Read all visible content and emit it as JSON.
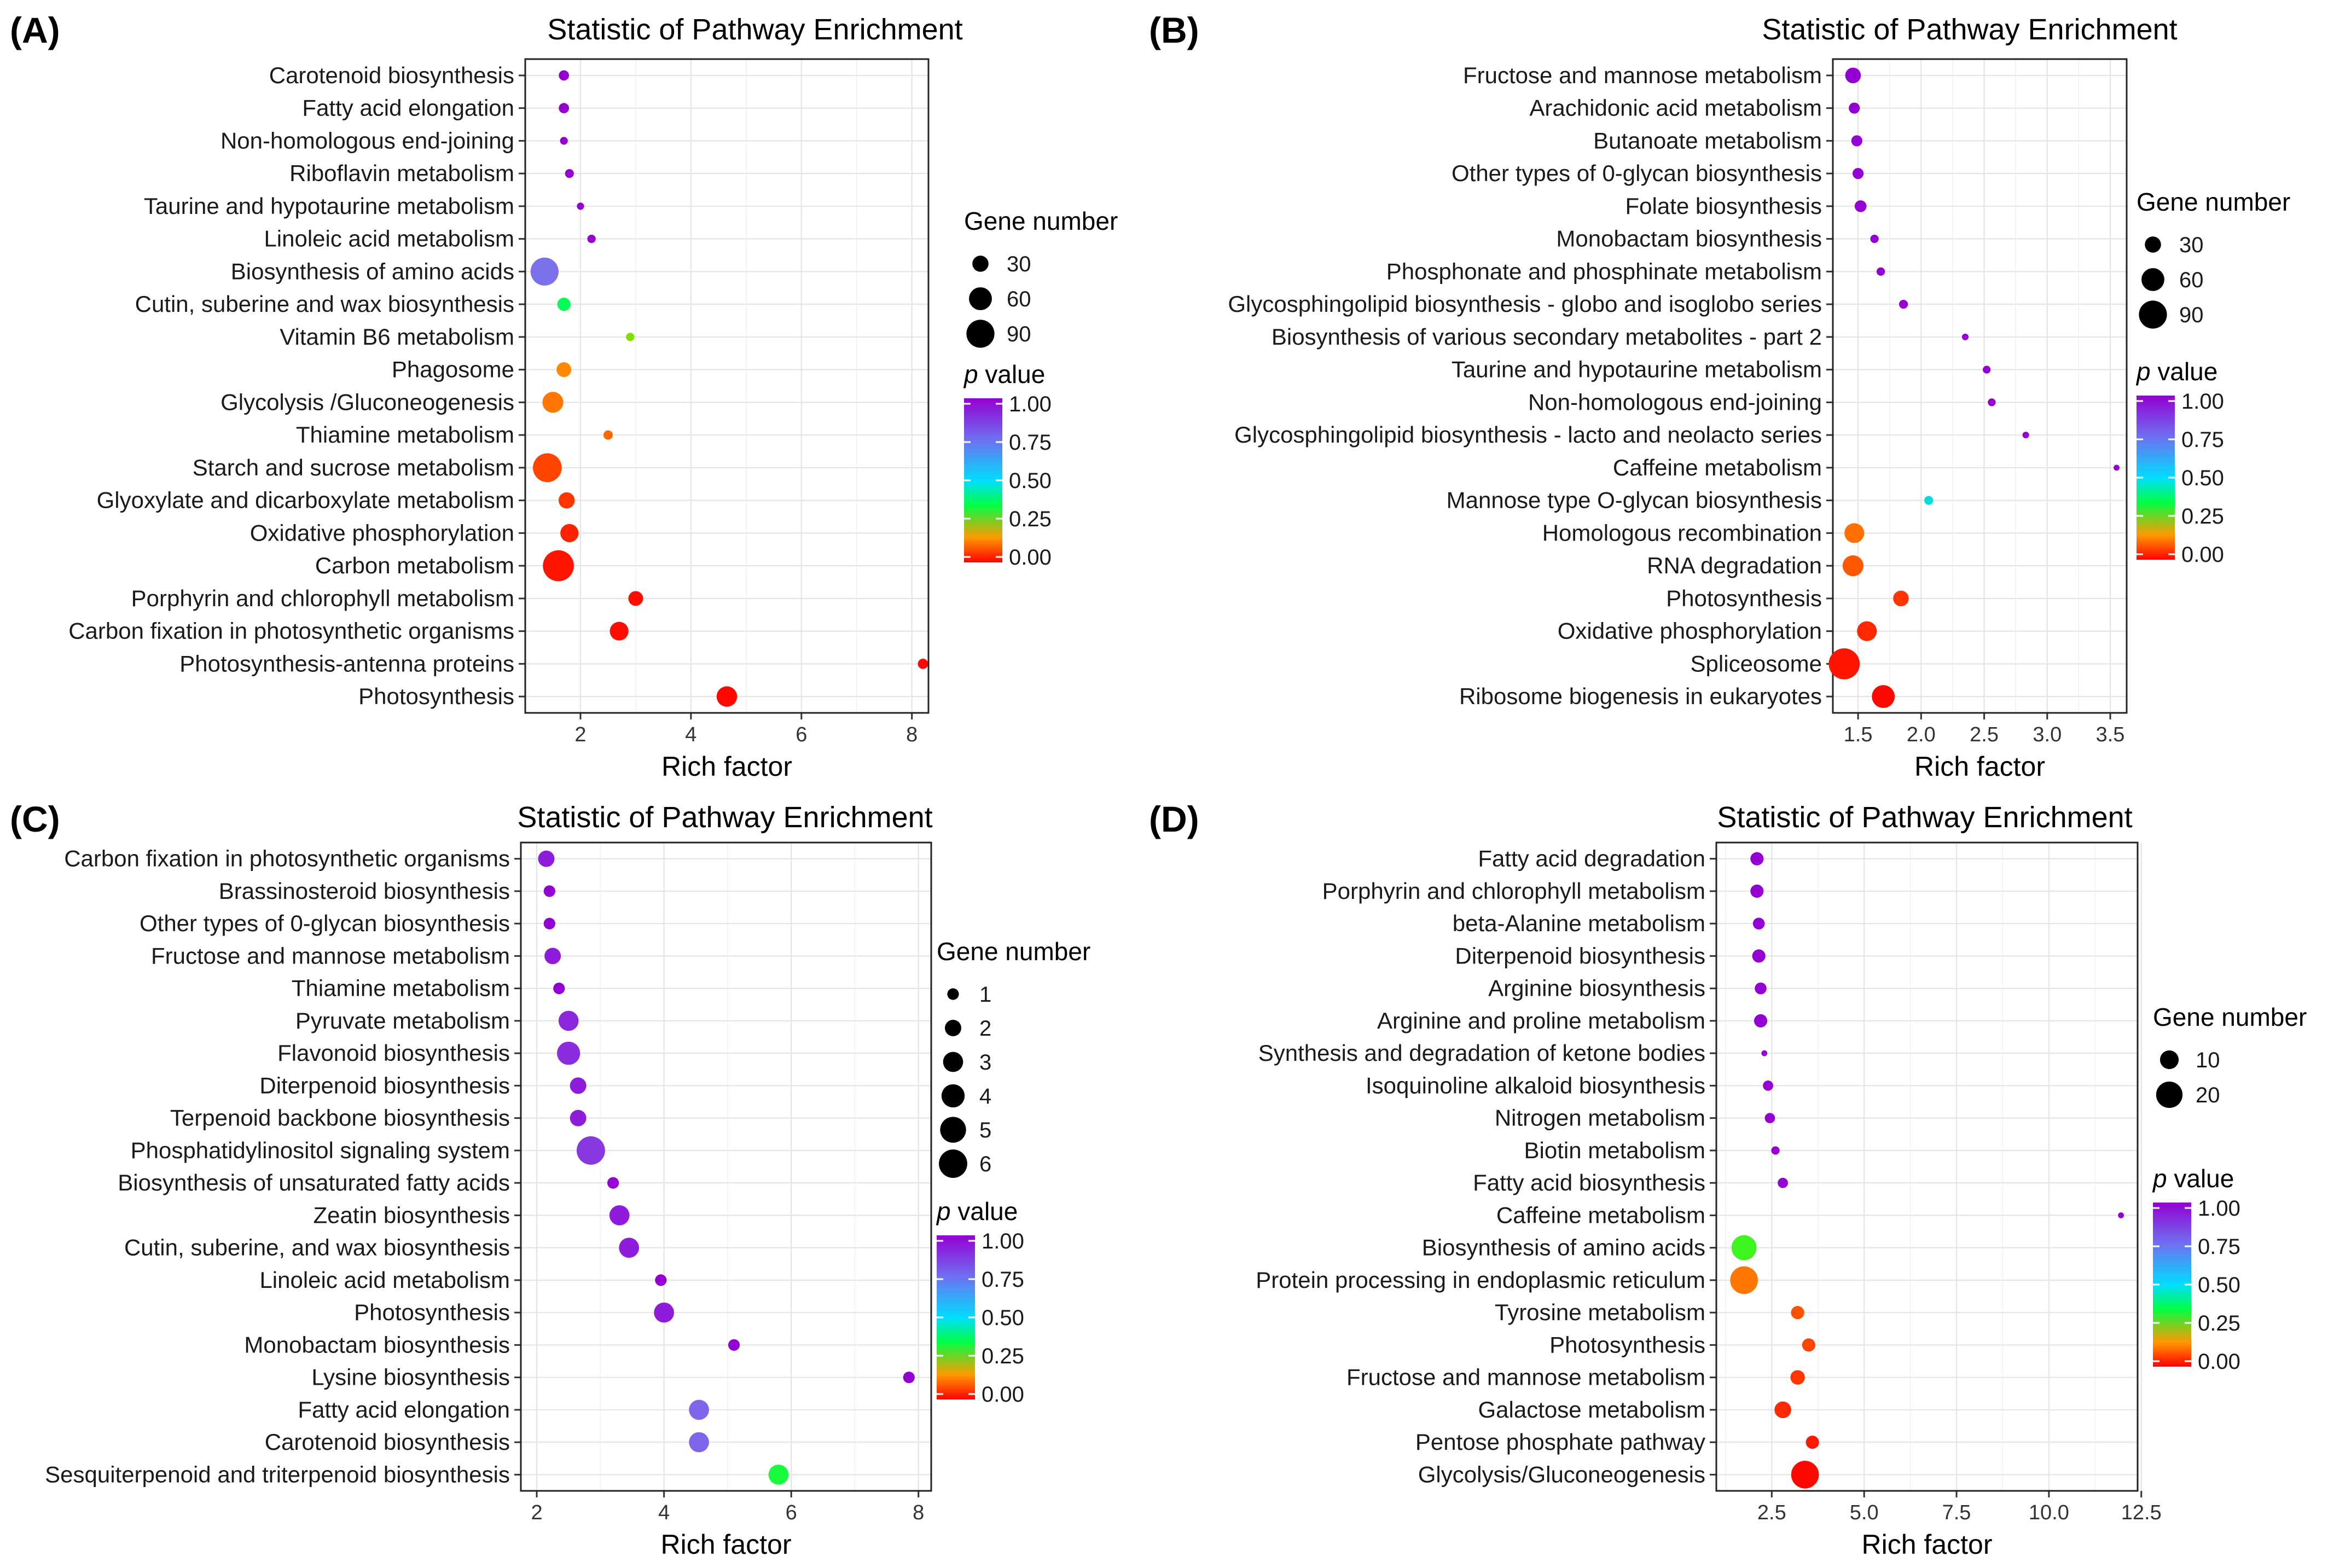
{
  "colors": {
    "p0": "#ff0000",
    "p025": "#ff9900",
    "p05": "#00ff55",
    "p075": "#00aaff",
    "p1": "#9400d3"
  },
  "chart_data": [
    {
      "panel": "(A)",
      "type": "scatter",
      "title": "Statistic of Pathway Enrichment",
      "xlabel": "Rich factor",
      "xlim": [
        1.0,
        8.3
      ],
      "xticks": [
        2,
        4,
        6,
        8
      ],
      "size_legend_title": "Gene number",
      "size_legend": [
        30,
        60,
        90
      ],
      "size_max": 100,
      "color_legend_title": "value",
      "color_legend_prefix": "p",
      "color_ticks": [
        "1.00",
        "0.75",
        "0.50",
        "0.25",
        "0.00"
      ],
      "points": [
        {
          "label": "Carotenoid biosynthesis",
          "x": 1.7,
          "size": 12,
          "p": 1.0
        },
        {
          "label": "Fatty acid elongation",
          "x": 1.7,
          "size": 12,
          "p": 1.0
        },
        {
          "label": "Non-homologous end-joining",
          "x": 1.7,
          "size": 7,
          "p": 1.0
        },
        {
          "label": "Riboflavin metabolism",
          "x": 1.8,
          "size": 9,
          "p": 1.0
        },
        {
          "label": "Taurine and hypotaurine metabolism",
          "x": 2.0,
          "size": 6,
          "p": 1.0
        },
        {
          "label": "Linoleic acid metabolism",
          "x": 2.2,
          "size": 8,
          "p": 1.0
        },
        {
          "label": "Biosynthesis of amino acids",
          "x": 1.35,
          "size": 90,
          "p": 0.8
        },
        {
          "label": "Cutin, suberine and wax biosynthesis",
          "x": 1.7,
          "size": 20,
          "p": 0.5
        },
        {
          "label": "Vitamin B6 metabolism",
          "x": 2.9,
          "size": 8,
          "p": 0.4
        },
        {
          "label": "Phagosome",
          "x": 1.7,
          "size": 25,
          "p": 0.25
        },
        {
          "label": "Glycolysis /Gluconeogenesis",
          "x": 1.5,
          "size": 50,
          "p": 0.2
        },
        {
          "label": "Thiamine metabolism",
          "x": 2.5,
          "size": 10,
          "p": 0.15
        },
        {
          "label": "Starch and sucrose metabolism",
          "x": 1.4,
          "size": 95,
          "p": 0.1
        },
        {
          "label": "Glyoxylate and dicarboxylate metabolism",
          "x": 1.75,
          "size": 30,
          "p": 0.08
        },
        {
          "label": "Oxidative phosphorylation",
          "x": 1.8,
          "size": 38,
          "p": 0.05
        },
        {
          "label": "Carbon metabolism",
          "x": 1.6,
          "size": 110,
          "p": 0.03
        },
        {
          "label": "Porphyrin and chlorophyll metabolism",
          "x": 3.0,
          "size": 25,
          "p": 0.02
        },
        {
          "label": "Carbon fixation in photosynthetic organisms",
          "x": 2.7,
          "size": 40,
          "p": 0.02
        },
        {
          "label": "Photosynthesis-antenna proteins",
          "x": 8.2,
          "size": 12,
          "p": 0.01
        },
        {
          "label": "Photosynthesis",
          "x": 4.65,
          "size": 48,
          "p": 0.01
        }
      ]
    },
    {
      "panel": "(B)",
      "type": "scatter",
      "title": "Statistic of Pathway Enrichment",
      "xlabel": "Rich factor",
      "xlim": [
        1.3,
        3.63
      ],
      "xticks": [
        "1.5",
        "2.0",
        "2.5",
        "3.0",
        "3.5"
      ],
      "size_legend_title": "Gene number",
      "size_legend": [
        30,
        60,
        90
      ],
      "size_max": 100,
      "color_legend_title": "value",
      "color_legend_prefix": "p",
      "color_ticks": [
        "1.00",
        "0.75",
        "0.50",
        "0.25",
        "0.00"
      ],
      "points": [
        {
          "label": "Fructose and mannose metabolism",
          "x": 1.46,
          "size": 28,
          "p": 1.0
        },
        {
          "label": "Arachidonic acid metabolism",
          "x": 1.47,
          "size": 14,
          "p": 1.0
        },
        {
          "label": "Butanoate metabolism",
          "x": 1.49,
          "size": 14,
          "p": 1.0
        },
        {
          "label": "Other types of 0-glycan biosynthesis",
          "x": 1.5,
          "size": 14,
          "p": 1.0
        },
        {
          "label": "Folate biosynthesis",
          "x": 1.52,
          "size": 16,
          "p": 1.0
        },
        {
          "label": "Monobactam biosynthesis",
          "x": 1.63,
          "size": 8,
          "p": 1.0
        },
        {
          "label": "Phosphonate and phosphinate metabolism",
          "x": 1.68,
          "size": 8,
          "p": 1.0
        },
        {
          "label": "Glycosphingolipid biosynthesis - globo and isoglobo series",
          "x": 1.86,
          "size": 9,
          "p": 1.0
        },
        {
          "label": "Biosynthesis of various secondary metabolites - part 2",
          "x": 2.35,
          "size": 5,
          "p": 1.0
        },
        {
          "label": "Taurine and hypotaurine metabolism",
          "x": 2.52,
          "size": 7,
          "p": 1.0
        },
        {
          "label": "Non-homologous end-joining",
          "x": 2.56,
          "size": 7,
          "p": 1.0
        },
        {
          "label": "Glycosphingolipid biosynthesis - lacto and neolacto series",
          "x": 2.83,
          "size": 5,
          "p": 1.0
        },
        {
          "label": "Caffeine metabolism",
          "x": 3.55,
          "size": 4,
          "p": 1.0
        },
        {
          "label": "Mannose type O-glycan biosynthesis",
          "x": 2.06,
          "size": 9,
          "p": 0.62
        },
        {
          "label": "Homologous recombination",
          "x": 1.47,
          "size": 45,
          "p": 0.18
        },
        {
          "label": "RNA degradation",
          "x": 1.46,
          "size": 50,
          "p": 0.13
        },
        {
          "label": "Photosynthesis",
          "x": 1.84,
          "size": 28,
          "p": 0.08
        },
        {
          "label": "Oxidative phosphorylation",
          "x": 1.57,
          "size": 45,
          "p": 0.06
        },
        {
          "label": "Spliceosome",
          "x": 1.39,
          "size": 110,
          "p": 0.03
        },
        {
          "label": "Ribosome biogenesis in eukaryotes",
          "x": 1.7,
          "size": 60,
          "p": 0.01
        }
      ]
    },
    {
      "panel": "(C)",
      "type": "scatter",
      "title": "Statistic of Pathway Enrichment",
      "xlabel": "Rich factor",
      "xlim": [
        1.75,
        8.2
      ],
      "xticks": [
        2,
        4,
        6,
        8
      ],
      "size_legend_title": "Gene number",
      "size_legend": [
        1,
        2,
        3,
        4,
        5,
        6
      ],
      "size_max": 6.5,
      "color_legend_title": "value",
      "color_legend_prefix": "p",
      "color_ticks": [
        "1.00",
        "0.75",
        "0.50",
        "0.25",
        "0.00"
      ],
      "points": [
        {
          "label": "Carbon fixation in photosynthetic organisms",
          "x": 2.15,
          "size": 2,
          "p": 0.95
        },
        {
          "label": "Brassinosteroid biosynthesis",
          "x": 2.2,
          "size": 1,
          "p": 1.0
        },
        {
          "label": "Other types of 0-glycan biosynthesis",
          "x": 2.2,
          "size": 1,
          "p": 1.0
        },
        {
          "label": "Fructose and mannose metabolism",
          "x": 2.25,
          "size": 2,
          "p": 0.95
        },
        {
          "label": "Thiamine metabolism",
          "x": 2.35,
          "size": 1,
          "p": 1.0
        },
        {
          "label": "Pyruvate metabolism",
          "x": 2.5,
          "size": 3,
          "p": 0.93
        },
        {
          "label": "Flavonoid biosynthesis",
          "x": 2.5,
          "size": 4,
          "p": 0.92
        },
        {
          "label": "Diterpenoid biosynthesis",
          "x": 2.65,
          "size": 2,
          "p": 0.95
        },
        {
          "label": "Terpenoid backbone biosynthesis",
          "x": 2.65,
          "size": 2,
          "p": 0.95
        },
        {
          "label": "Phosphatidylinositol signaling system",
          "x": 2.85,
          "size": 6,
          "p": 0.9
        },
        {
          "label": "Biosynthesis of unsaturated fatty acids",
          "x": 3.2,
          "size": 1,
          "p": 1.0
        },
        {
          "label": "Zeatin biosynthesis",
          "x": 3.3,
          "size": 3,
          "p": 0.95
        },
        {
          "label": "Cutin, suberine, and wax biosynthesis",
          "x": 3.45,
          "size": 3,
          "p": 0.95
        },
        {
          "label": "Linoleic acid metabolism",
          "x": 3.95,
          "size": 1,
          "p": 1.0
        },
        {
          "label": "Photosynthesis",
          "x": 4.0,
          "size": 3,
          "p": 0.95
        },
        {
          "label": "Monobactam biosynthesis",
          "x": 5.1,
          "size": 1,
          "p": 1.0
        },
        {
          "label": "Lysine biosynthesis",
          "x": 7.85,
          "size": 1,
          "p": 1.0
        },
        {
          "label": "Fatty acid elongation",
          "x": 4.55,
          "size": 3,
          "p": 0.82
        },
        {
          "label": "Carotenoid biosynthesis",
          "x": 4.55,
          "size": 3,
          "p": 0.82
        },
        {
          "label": "Sesquiterpenoid and triterpenoid biosynthesis",
          "x": 5.8,
          "size": 3,
          "p": 0.48
        }
      ]
    },
    {
      "panel": "(D)",
      "type": "scatter",
      "title": "Statistic of Pathway Enrichment",
      "xlabel": "Rich factor",
      "xlim": [
        1.0,
        12.4
      ],
      "xticks": [
        "2.5",
        "5.0",
        "7.5",
        "10.0",
        "12.5"
      ],
      "size_legend_title": "Gene number",
      "size_legend": [
        10,
        20
      ],
      "size_max": 25,
      "color_legend_title": "value",
      "color_legend_prefix": "p",
      "color_ticks": [
        "1.00",
        "0.75",
        "0.50",
        "0.25",
        "0.00"
      ],
      "points": [
        {
          "label": "Fatty acid degradation",
          "x": 2.1,
          "size": 5,
          "p": 1.0
        },
        {
          "label": "Porphyrin and chlorophyll metabolism",
          "x": 2.1,
          "size": 5,
          "p": 1.0
        },
        {
          "label": "beta-Alanine metabolism",
          "x": 2.15,
          "size": 4,
          "p": 1.0
        },
        {
          "label": "Diterpenoid biosynthesis",
          "x": 2.15,
          "size": 5,
          "p": 1.0
        },
        {
          "label": "Arginine biosynthesis",
          "x": 2.2,
          "size": 4,
          "p": 1.0
        },
        {
          "label": "Arginine and proline metabolism",
          "x": 2.2,
          "size": 5,
          "p": 1.0
        },
        {
          "label": "Synthesis and degradation of ketone bodies",
          "x": 2.3,
          "size": 1,
          "p": 1.0
        },
        {
          "label": "Isoquinoline alkaloid biosynthesis",
          "x": 2.4,
          "size": 3,
          "p": 1.0
        },
        {
          "label": "Nitrogen metabolism",
          "x": 2.45,
          "size": 3,
          "p": 1.0
        },
        {
          "label": "Biotin metabolism",
          "x": 2.6,
          "size": 2,
          "p": 1.0
        },
        {
          "label": "Fatty acid biosynthesis",
          "x": 2.8,
          "size": 3,
          "p": 1.0
        },
        {
          "label": "Caffeine metabolism",
          "x": 11.95,
          "size": 1,
          "p": 1.0
        },
        {
          "label": "Biosynthesis of amino acids",
          "x": 1.75,
          "size": 18,
          "p": 0.45
        },
        {
          "label": "Protein processing in endoplasmic reticulum",
          "x": 1.75,
          "size": 22,
          "p": 0.2
        },
        {
          "label": "Tyrosine metabolism",
          "x": 3.2,
          "size": 5,
          "p": 0.12
        },
        {
          "label": "Photosynthesis",
          "x": 3.5,
          "size": 5,
          "p": 0.1
        },
        {
          "label": "Fructose and mannose metabolism",
          "x": 3.2,
          "size": 6,
          "p": 0.08
        },
        {
          "label": "Galactose metabolism",
          "x": 2.8,
          "size": 8,
          "p": 0.06
        },
        {
          "label": "Pentose phosphate pathway",
          "x": 3.6,
          "size": 5,
          "p": 0.04
        },
        {
          "label": "Glycolysis/Gluconeogenesis",
          "x": 3.4,
          "size": 22,
          "p": 0.01
        }
      ]
    }
  ]
}
